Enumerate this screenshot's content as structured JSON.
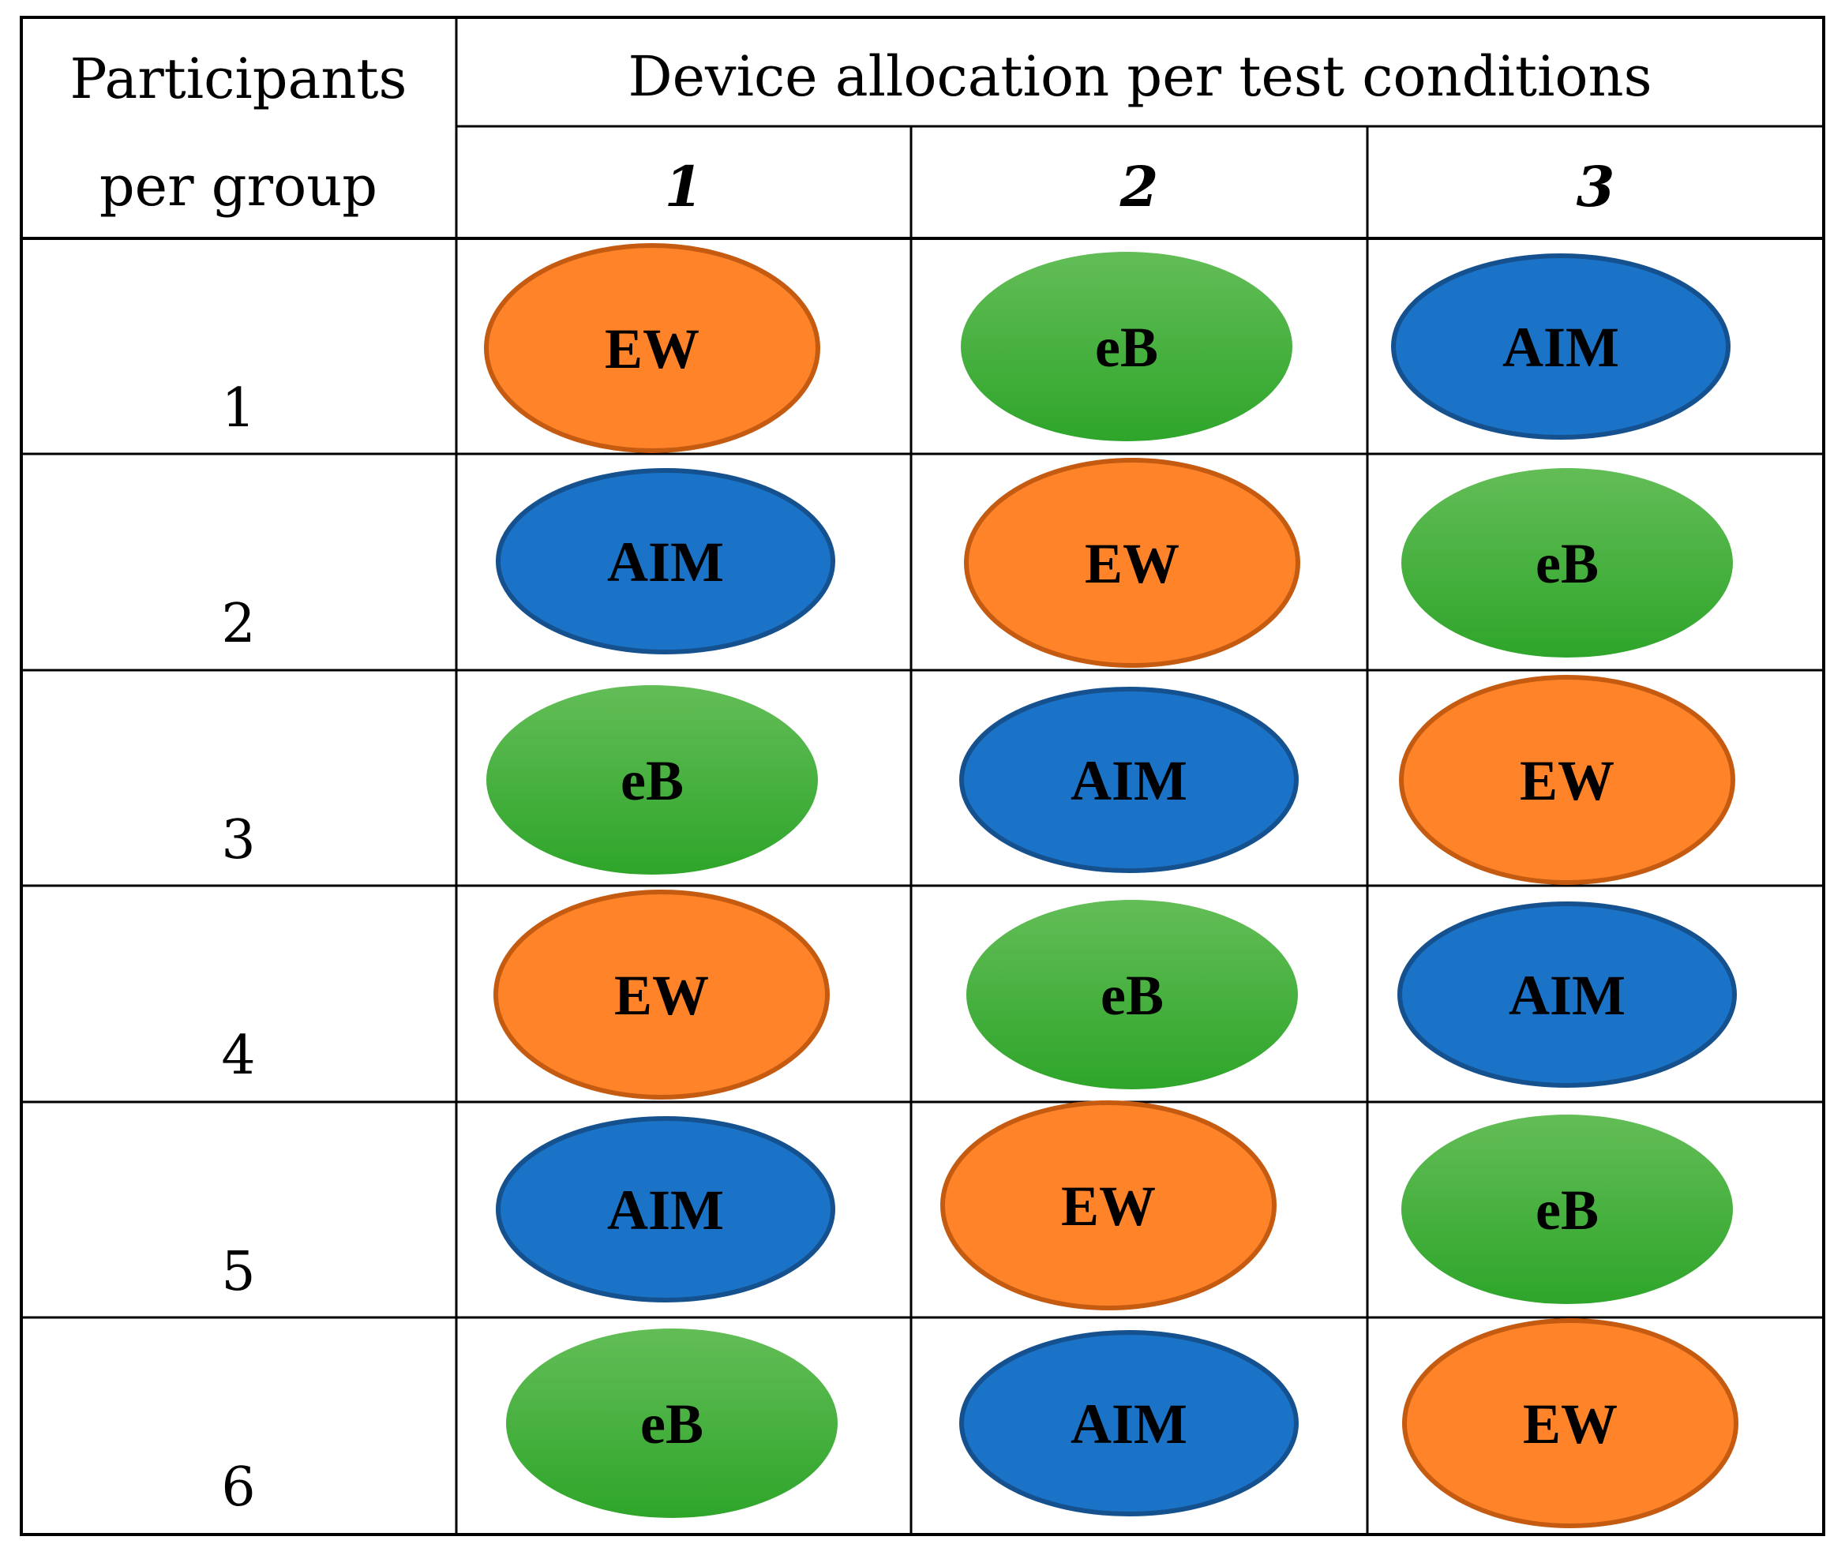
{
  "header": {
    "participants_line1": "Participants",
    "participants_line2": "per group",
    "allocation_title": "Device allocation per test conditions",
    "conditions": [
      "1",
      "2",
      "3"
    ]
  },
  "devices": {
    "EW": {
      "label": "EW",
      "fill": "#FF8328",
      "stroke": "#C55A11"
    },
    "eB": {
      "label": "eB",
      "fill_top": "#63BD57",
      "fill_bottom": "#2EA52A"
    },
    "AIM": {
      "label": "AIM",
      "fill": "#1A73C6",
      "stroke": "#15508F"
    }
  },
  "rows": [
    {
      "group": "1",
      "allocation": [
        "EW",
        "eB",
        "AIM"
      ]
    },
    {
      "group": "2",
      "allocation": [
        "AIM",
        "EW",
        "eB"
      ]
    },
    {
      "group": "3",
      "allocation": [
        "eB",
        "AIM",
        "EW"
      ]
    },
    {
      "group": "4",
      "allocation": [
        "EW",
        "eB",
        "AIM"
      ]
    },
    {
      "group": "5",
      "allocation": [
        "AIM",
        "EW",
        "eB"
      ]
    },
    {
      "group": "6",
      "allocation": [
        "eB",
        "AIM",
        "EW"
      ]
    }
  ]
}
